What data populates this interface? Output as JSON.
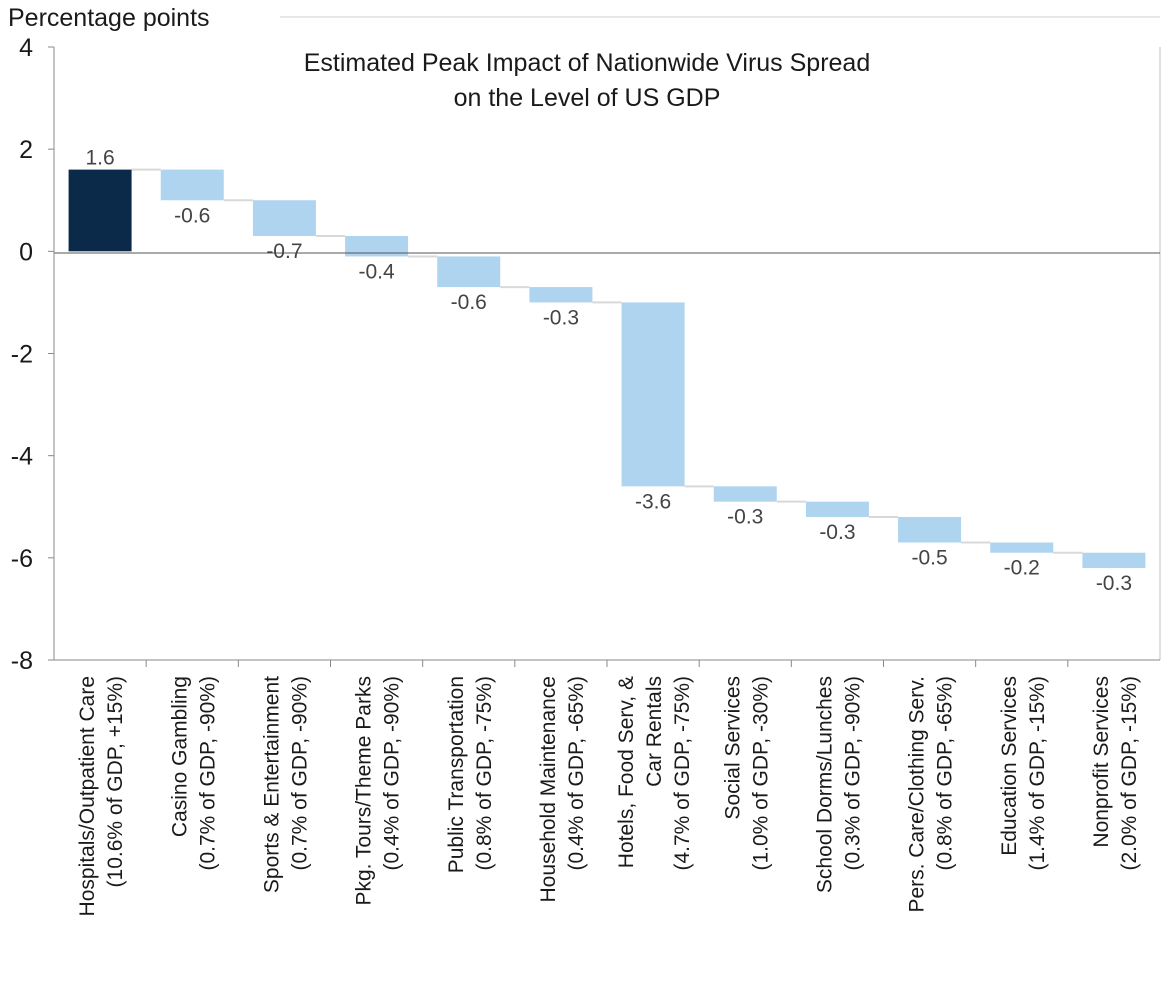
{
  "chart_data": {
    "type": "bar",
    "subtype": "waterfall",
    "title": "Estimated Peak Impact of Nationwide Virus Spread",
    "title_line2": "on the Level of US GDP",
    "ylabel": "Percentage points",
    "ylim": [
      -8,
      4
    ],
    "yticks": [
      "4",
      "2",
      "0",
      "-2",
      "-4",
      "-6",
      "-8"
    ],
    "grid": false,
    "categories": [
      [
        "Hospitals/Outpatient Care",
        "(10.6% of GDP, +15%)"
      ],
      [
        "Casino Gambling",
        "(0.7% of GDP, -90%)"
      ],
      [
        "Sports & Entertainment",
        "(0.7% of GDP, -90%)"
      ],
      [
        "Pkg. Tours/Theme Parks",
        "(0.4% of GDP, -90%)"
      ],
      [
        "Public Transportation",
        "(0.8% of GDP, -75%)"
      ],
      [
        "Household Maintenance",
        "(0.4% of GDP, -65%)"
      ],
      [
        "Hotels, Food Serv, &",
        "Car Rentals",
        "(4.7% of GDP, -75%)"
      ],
      [
        "Social Services",
        "(1.0% of GDP, -30%)"
      ],
      [
        "School Dorms/Lunches",
        "(0.3% of GDP, -90%)"
      ],
      [
        "Pers. Care/Clothing Serv.",
        "(0.8% of GDP, -65%)"
      ],
      [
        "Education Services",
        "(1.4% of GDP, -15%)"
      ],
      [
        "Nonprofit Services",
        "(2.0% of GDP, -15%)"
      ]
    ],
    "values": [
      1.6,
      -0.6,
      -0.7,
      -0.4,
      -0.6,
      -0.3,
      -3.6,
      -0.3,
      -0.3,
      -0.5,
      -0.2,
      -0.3
    ],
    "value_labels": [
      "1.6",
      "-0.6",
      "-0.7",
      "-0.4",
      "-0.6",
      "-0.3",
      "-3.6",
      "-0.3",
      "-0.3",
      "-0.5",
      "-0.2",
      "-0.3"
    ],
    "colors": {
      "positive": "#0b2a4a",
      "negative": "#aed4ef",
      "connector": "#d9d9d9"
    }
  }
}
